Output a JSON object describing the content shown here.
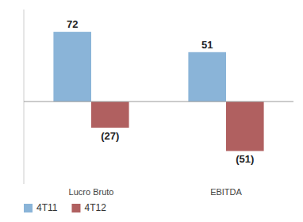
{
  "chart_data": {
    "type": "bar",
    "categories": [
      "Lucro Bruto",
      "EBITDA"
    ],
    "series": [
      {
        "name": "4T11",
        "color": "#8AB4D8",
        "values": [
          72,
          51
        ]
      },
      {
        "name": "4T12",
        "color": "#B06060",
        "values": [
          -27,
          -51
        ],
        "value_labels": [
          "(27)",
          "(51)"
        ]
      }
    ],
    "ylim": [
      -85,
      95
    ],
    "data_labels": true,
    "legend": "lower left",
    "tick_labels": "x"
  }
}
